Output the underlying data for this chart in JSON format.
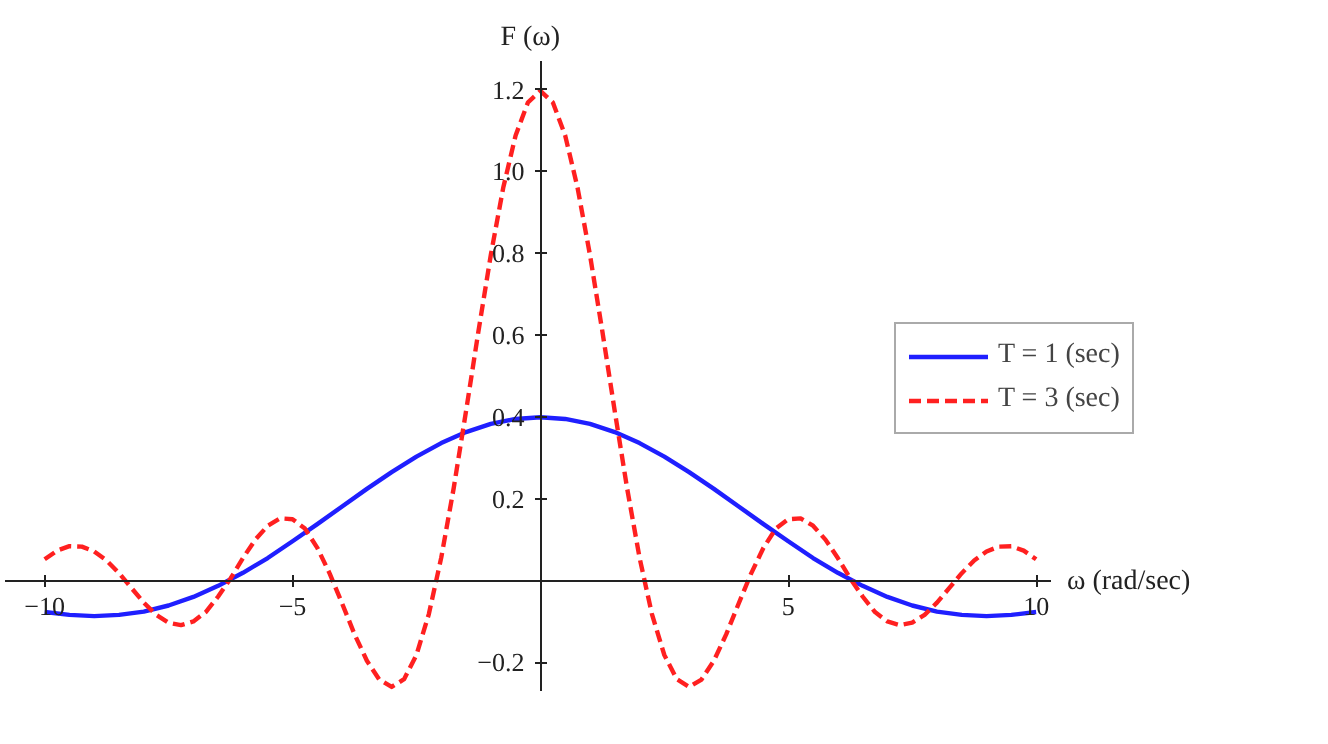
{
  "chart_data": {
    "type": "line",
    "xlabel": "ω (rad/sec)",
    "ylabel": "F (ω)",
    "xlim": [
      -10.8,
      10.3
    ],
    "ylim": [
      -0.27,
      1.27
    ],
    "xticks": [
      {
        "value": -10,
        "label": "−10"
      },
      {
        "value": -5,
        "label": "−5"
      },
      5,
      10
    ],
    "yticks": [
      {
        "value": -0.2,
        "label": "−0.2"
      },
      0.2,
      0.4,
      0.6,
      0.8,
      {
        "value": 1.0,
        "label": "1.0"
      },
      1.2
    ],
    "grid": false,
    "legend": "right",
    "series": [
      {
        "name": "T = 1 (sec)",
        "color": "#1f1fff",
        "line_style": "solid",
        "x": [
          -10,
          -9.5,
          -9,
          -8.5,
          -8,
          -7.5,
          -7,
          -6.5,
          -6,
          -5.5,
          -5,
          -4.5,
          -4,
          -3.5,
          -3,
          -2.5,
          -2,
          -1.5,
          -1,
          -0.5,
          0,
          0.5,
          1,
          1.5,
          2,
          2.5,
          3,
          3.5,
          4,
          4.5,
          5,
          5.5,
          6,
          6.5,
          7,
          7.5,
          8,
          8.5,
          9,
          9.5,
          10
        ],
        "values": [
          -0.077,
          -0.084,
          -0.087,
          -0.084,
          -0.076,
          -0.061,
          -0.04,
          -0.013,
          0.019,
          0.055,
          0.096,
          0.138,
          0.181,
          0.224,
          0.265,
          0.303,
          0.336,
          0.363,
          0.383,
          0.395,
          0.399,
          0.395,
          0.383,
          0.363,
          0.336,
          0.303,
          0.265,
          0.224,
          0.181,
          0.138,
          0.096,
          0.055,
          0.019,
          -0.013,
          -0.04,
          -0.061,
          -0.076,
          -0.084,
          -0.087,
          -0.084,
          -0.077
        ]
      },
      {
        "name": "T = 3 (sec)",
        "color": "#ff2020",
        "line_style": "dashed",
        "x": [
          -10,
          -9.75,
          -9.5,
          -9.25,
          -9,
          -8.75,
          -8.5,
          -8.25,
          -8,
          -7.75,
          -7.5,
          -7.25,
          -7,
          -6.75,
          -6.5,
          -6.25,
          -6,
          -5.75,
          -5.5,
          -5.25,
          -5,
          -4.75,
          -4.5,
          -4.25,
          -4,
          -3.75,
          -3.5,
          -3.25,
          -3,
          -2.75,
          -2.5,
          -2.25,
          -2,
          -1.75,
          -1.5,
          -1.25,
          -1,
          -0.75,
          -0.5,
          -0.25,
          0,
          0.25,
          0.5,
          0.75,
          1,
          1.25,
          1.5,
          1.75,
          2,
          2.25,
          2.5,
          2.75,
          3,
          3.25,
          3.5,
          3.75,
          4,
          4.25,
          4.5,
          4.75,
          5,
          5.25,
          5.5,
          5.75,
          6,
          6.25,
          6.5,
          6.75,
          7,
          7.25,
          7.5,
          7.75,
          8,
          8.25,
          8.5,
          8.75,
          9,
          9.25,
          9.5,
          9.75,
          10
        ],
        "values": [
          0.052,
          0.073,
          0.084,
          0.083,
          0.071,
          0.049,
          0.018,
          -0.018,
          -0.054,
          -0.084,
          -0.103,
          -0.109,
          -0.1,
          -0.077,
          -0.039,
          0.005,
          0.055,
          0.1,
          0.134,
          0.152,
          0.15,
          0.127,
          0.08,
          0.017,
          -0.056,
          -0.131,
          -0.196,
          -0.242,
          -0.26,
          -0.241,
          -0.182,
          -0.082,
          0.056,
          0.225,
          0.414,
          0.609,
          0.796,
          0.96,
          1.088,
          1.169,
          1.197,
          1.169,
          1.088,
          0.96,
          0.796,
          0.609,
          0.414,
          0.225,
          0.056,
          -0.082,
          -0.182,
          -0.241,
          -0.26,
          -0.242,
          -0.196,
          -0.131,
          -0.056,
          0.017,
          0.08,
          0.127,
          0.15,
          0.152,
          0.134,
          0.1,
          0.055,
          0.005,
          -0.039,
          -0.077,
          -0.1,
          -0.109,
          -0.103,
          -0.084,
          -0.054,
          -0.018,
          0.018,
          0.049,
          0.071,
          0.083,
          0.084,
          0.073,
          0.052
        ]
      }
    ]
  }
}
